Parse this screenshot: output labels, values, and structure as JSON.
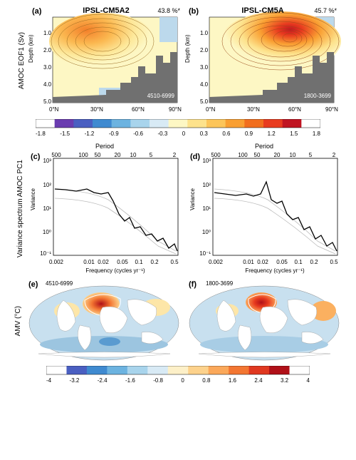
{
  "figure": {
    "col_titles": {
      "left": "IPSL-CM5A2",
      "right": "IPSL-CM5A"
    },
    "ylabels": {
      "row1": "AMOC EOF1 (Sv)",
      "row1_inner": "Depth (km)",
      "row2": "Variance spectrum AMOC PC1",
      "row2_inner": "Variance",
      "row3": "AMV (°C)"
    },
    "xlabels": {
      "row2_bottom": "Frequency (cycles yr⁻¹)",
      "row2_top": "Period"
    },
    "panels": {
      "a": {
        "label": "(a)",
        "pct": "43.8 %*",
        "caption": "4510-6999",
        "xticks": [
          "0°N",
          "30°N",
          "60°N",
          "90°N"
        ],
        "yticks": [
          "1.0",
          "2.0",
          "3.0",
          "4.0",
          "5.0"
        ]
      },
      "b": {
        "label": "(b)",
        "pct": "45.7 %*",
        "caption": "1800-3699",
        "xticks": [
          "0°N",
          "30°N",
          "60°N",
          "90°N"
        ],
        "yticks": [
          "1.0",
          "2.0",
          "3.0",
          "4.0",
          "5.0"
        ]
      },
      "c": {
        "label": "(c)",
        "top_ticks": [
          "500",
          "100",
          "50",
          "20",
          "10",
          "5",
          "2"
        ],
        "bottom_ticks": [
          "0.002",
          "0.01",
          "0.02",
          "0.05",
          "0.1",
          "0.2",
          "0.5"
        ],
        "y_ticks": [
          "10⁻¹",
          "10⁰",
          "10¹",
          "10²",
          "10³"
        ]
      },
      "d": {
        "label": "(d)",
        "top_ticks": [
          "500",
          "100",
          "50",
          "20",
          "10",
          "5",
          "2"
        ],
        "bottom_ticks": [
          "0.002",
          "0.01",
          "0.02",
          "0.05",
          "0.1",
          "0.2",
          "0.5"
        ],
        "y_ticks": [
          "10⁻¹",
          "10⁰",
          "10¹",
          "10²",
          "10³"
        ]
      },
      "e": {
        "label": "(e)",
        "caption": "4510-6999"
      },
      "f": {
        "label": "(f)",
        "caption": "1800-3699"
      }
    },
    "colorbar1": {
      "ticks": [
        "-1.8",
        "-1.5",
        "-1.2",
        "-0.9",
        "-0.6",
        "-0.3",
        "0",
        "0.3",
        "0.6",
        "0.9",
        "1.2",
        "1.5",
        "1.8"
      ],
      "colors": [
        "#ffffff",
        "#6a3cb0",
        "#4a5fc1",
        "#3f8ad0",
        "#6cb3e0",
        "#a8d4ec",
        "#d8eaf5",
        "#fdf7c4",
        "#fde28c",
        "#fcc55a",
        "#f99f32",
        "#f16e1e",
        "#e83b1f",
        "#c01522",
        "#ffffff"
      ]
    },
    "colorbar2": {
      "ticks": [
        "-4",
        "-3.2",
        "-2.4",
        "-1.6",
        "-0.8",
        "0",
        "0.8",
        "1.6",
        "2.4",
        "3.2",
        "4"
      ],
      "colors": [
        "#ffffff",
        "#4a5fc1",
        "#3f8ad0",
        "#6cb3e0",
        "#a8d4ec",
        "#d8eaf5",
        "#fdf0c8",
        "#fdd28c",
        "#fba85a",
        "#f37632",
        "#e03820",
        "#b01018",
        "#ffffff"
      ]
    },
    "eof_contours": {
      "a": {
        "peak_color": "#f16e1e",
        "bg_color": "#fdf7c4"
      },
      "b": {
        "peak_color": "#c01522",
        "bg_color": "#fdf7c4"
      }
    },
    "topography_color": "#707070",
    "plot": {
      "panel_ab_w": 200,
      "panel_ab_h": 140,
      "panel_cd_w": 200,
      "panel_cd_h": 160,
      "panel_ef_w": 210,
      "panel_ef_h": 115,
      "line_color": "#000000",
      "ci_color": "#bbbbbb"
    },
    "styling": {
      "font_family": "Arial, Helvetica, sans-serif",
      "tick_fontsize": 8,
      "label_fontsize": 10,
      "title_fontsize": 11,
      "background": "#ffffff"
    }
  }
}
